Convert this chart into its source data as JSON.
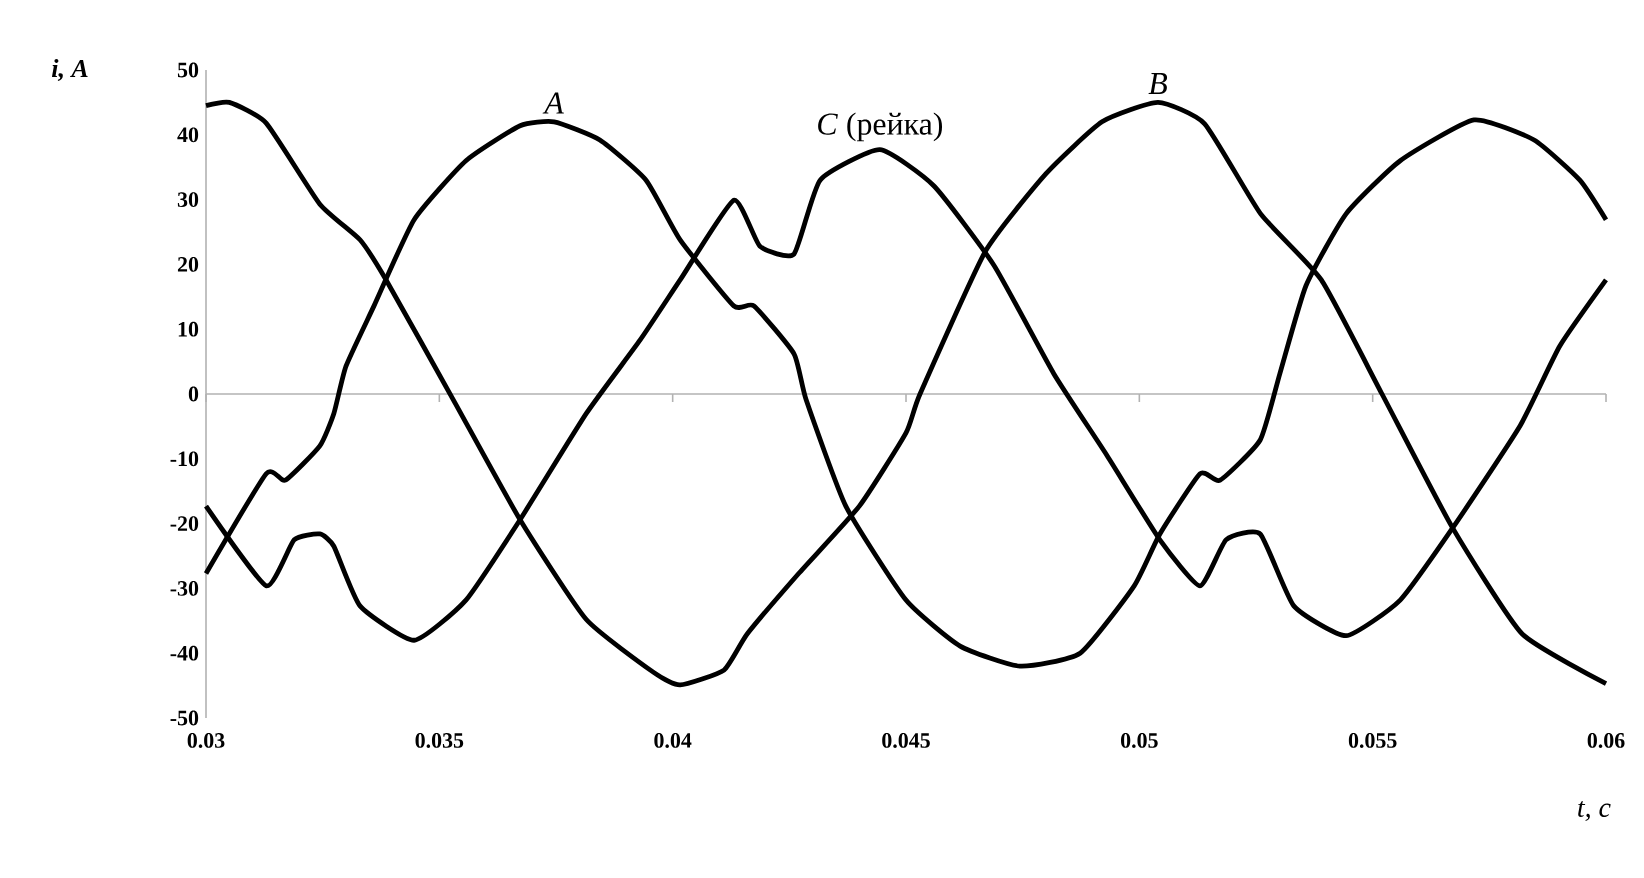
{
  "chart_data": {
    "type": "line",
    "xlabel": "t, c",
    "ylabel": "i, A",
    "xlim": [
      0.03,
      0.06
    ],
    "ylim": [
      -50,
      50
    ],
    "xticks": [
      0.03,
      0.035,
      0.04,
      0.045,
      0.05,
      0.055,
      0.06
    ],
    "yticks": [
      -50,
      -40,
      -30,
      -20,
      -10,
      0,
      10,
      20,
      30,
      40,
      50
    ],
    "marker": "none",
    "line_style": "solid",
    "annotations": [
      {
        "text": "*A*",
        "x": 0.03746,
        "y": 42
      },
      {
        "text": "*C* (рейка)",
        "x": 0.04444,
        "y": 37.7
      },
      {
        "text": "*B*",
        "x": 0.0504,
        "y": 45
      }
    ],
    "series": [
      {
        "color": "#000000",
        "x": [
          0.03,
          0.03129,
          0.0317,
          0.03244,
          0.03274,
          0.033,
          0.0336,
          0.03446,
          0.03557,
          0.03673,
          0.03746,
          0.03844,
          0.03943,
          0.04016,
          0.04131,
          0.04174,
          0.0426,
          0.04286,
          0.04371,
          0.045,
          0.04616,
          0.04744,
          0.04873,
          0.04989,
          0.05044,
          0.0513,
          0.05173,
          0.05259,
          0.05301,
          0.05357,
          0.05443,
          0.05559,
          0.05717,
          0.05846,
          0.05944,
          0.06
        ],
        "values": [
          -27.7,
          -12.3,
          -13.3,
          -8,
          -3,
          4.3,
          13.6,
          26.9,
          36,
          41.4,
          42,
          39.2,
          33,
          23.8,
          13.6,
          13.6,
          6.2,
          -0.9,
          -17.3,
          -31.8,
          -38.9,
          -42,
          -40,
          -29.6,
          -21.6,
          -12.3,
          -13.3,
          -7.1,
          3.1,
          16.7,
          27.8,
          36,
          42.3,
          39.2,
          33,
          26.9
        ]
      },
      {
        "color": "#000000",
        "x": [
          0.03,
          0.0305,
          0.03129,
          0.03244,
          0.0333,
          0.03386,
          0.0353,
          0.03673,
          0.03815,
          0.0396,
          0.04016,
          0.0411,
          0.0416,
          0.0427,
          0.044,
          0.045,
          0.0453,
          0.0467,
          0.048,
          0.0492,
          0.0504,
          0.0514,
          0.0526,
          0.0539,
          0.0552,
          0.0567,
          0.0582,
          0.06
        ],
        "values": [
          44.5,
          45,
          41.8,
          29.3,
          23.8,
          17.6,
          -0.9,
          -19.4,
          -34.8,
          -43,
          -44.9,
          -42.6,
          -37,
          -27.7,
          -17.3,
          -6,
          0,
          22,
          34,
          42,
          45,
          41.7,
          27.8,
          17.6,
          0,
          -20.5,
          -37,
          -44.7
        ]
      },
      {
        "color": "#000000",
        "x": [
          0.03,
          0.03129,
          0.03189,
          0.03244,
          0.03274,
          0.0333,
          0.03446,
          0.03557,
          0.03673,
          0.03815,
          0.0393,
          0.04016,
          0.04131,
          0.04187,
          0.0426,
          0.04316,
          0.04444,
          0.0456,
          0.04689,
          0.04817,
          0.04929,
          0.05044,
          0.0513,
          0.05186,
          0.05259,
          0.05331,
          0.05443,
          0.05559,
          0.05674,
          0.05816,
          0.05901,
          0.06
        ],
        "values": [
          -17.3,
          -29.6,
          -22.5,
          -21.6,
          -23.5,
          -32.7,
          -38,
          -31.8,
          -19.4,
          -3,
          8.3,
          17.6,
          29.9,
          22.8,
          21.6,
          33,
          37.7,
          32.1,
          19.8,
          3.1,
          -9.3,
          -22.5,
          -29.6,
          -22.5,
          -21.6,
          -32.7,
          -37.3,
          -31.8,
          -20.4,
          -4.9,
          7.4,
          17.6
        ]
      }
    ]
  }
}
